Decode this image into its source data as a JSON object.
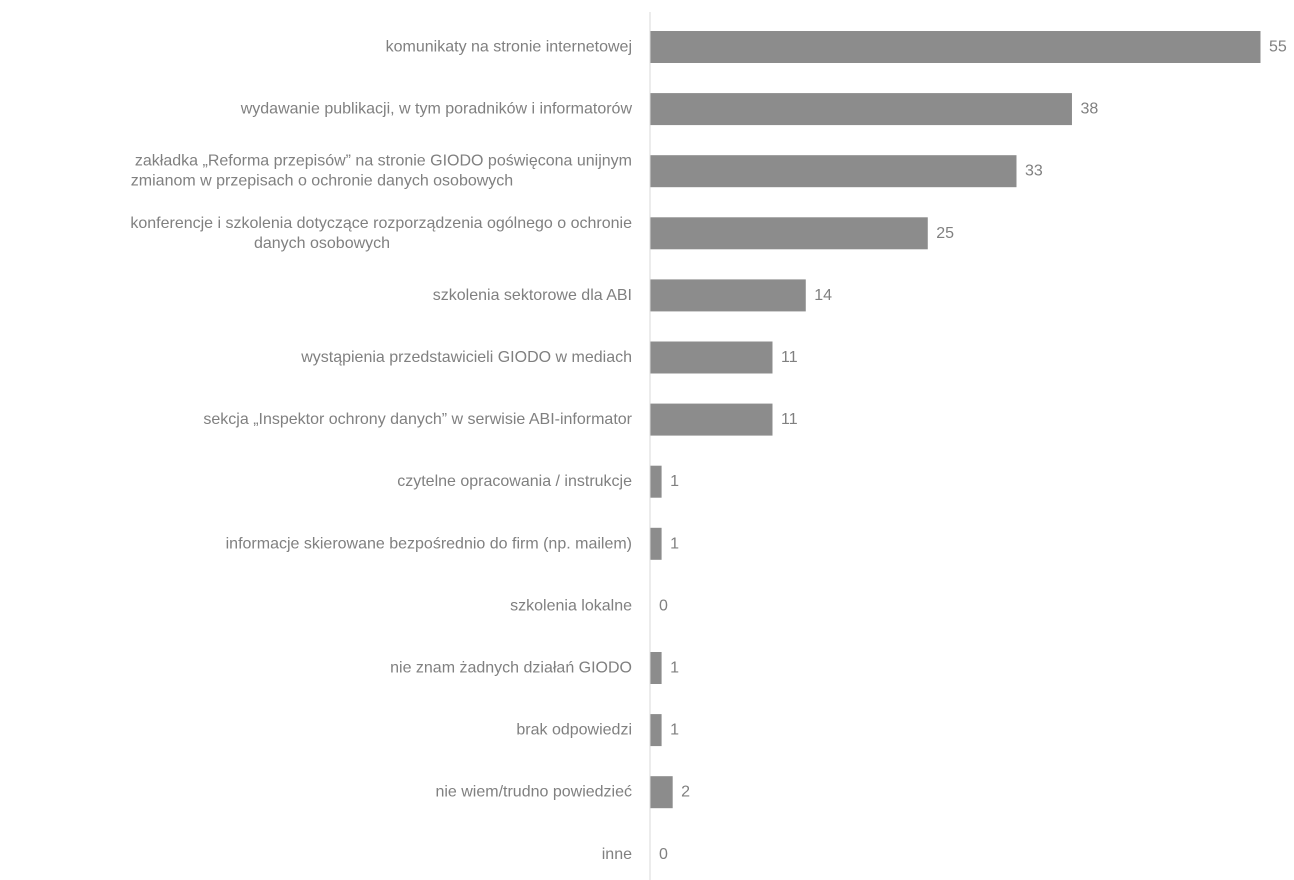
{
  "chart_data": {
    "type": "bar",
    "orientation": "horizontal",
    "title": "",
    "xlabel": "",
    "ylabel": "",
    "grid": false,
    "legend": "none",
    "xlim": [
      0,
      55
    ],
    "bar_color": "#8c8c8c",
    "axis_color": "#d9d9d9",
    "label_color": "#808080",
    "categories": [
      [
        "komunikaty na stronie internetowej"
      ],
      [
        "wydawanie publikacji, w tym poradników i informatorów"
      ],
      [
        "zakładka „Reforma przepisów” na stronie GIODO poświęcona unijnym",
        "zmianom w przepisach o ochronie danych osobowych"
      ],
      [
        "konferencje i szkolenia dotyczące rozporządzenia ogólnego o ochronie",
        "danych osobowych"
      ],
      [
        "szkolenia sektorowe dla ABI"
      ],
      [
        "wystąpienia przedstawicieli GIODO w mediach"
      ],
      [
        "sekcja „Inspektor ochrony danych” w serwisie ABI-informator"
      ],
      [
        "czytelne opracowania / instrukcje"
      ],
      [
        "informacje skierowane bezpośrednio do firm (np. mailem)"
      ],
      [
        "szkolenia lokalne"
      ],
      [
        "nie znam żadnych działań GIODO"
      ],
      [
        "brak odpowiedzi"
      ],
      [
        "nie wiem/trudno powiedzieć"
      ],
      [
        "inne"
      ]
    ],
    "values": [
      55,
      38,
      33,
      25,
      14,
      11,
      11,
      1,
      1,
      0,
      1,
      1,
      2,
      0
    ]
  }
}
